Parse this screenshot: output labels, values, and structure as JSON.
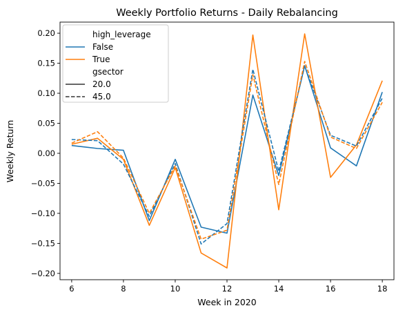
{
  "chart_data": {
    "type": "line",
    "title": "Weekly Portfolio Returns - Daily Rebalancing",
    "xlabel": "Week in 2020",
    "ylabel": "Weekly Return",
    "xlim": [
      5.55,
      18.45
    ],
    "ylim": [
      -0.2105,
      0.2185
    ],
    "x_ticks": [
      6,
      8,
      10,
      12,
      14,
      16,
      18
    ],
    "x_tick_labels": [
      "6",
      "8",
      "10",
      "12",
      "14",
      "16",
      "18"
    ],
    "y_ticks": [
      -0.2,
      -0.15,
      -0.1,
      -0.05,
      0.0,
      0.05,
      0.1,
      0.15,
      0.2
    ],
    "y_tick_labels": [
      "−0.20",
      "−0.15",
      "−0.10",
      "−0.05",
      "0.00",
      "0.05",
      "0.10",
      "0.15",
      "0.20"
    ],
    "grid": false,
    "legend_position": "top-left",
    "legend": {
      "title_hue": "high_leverage",
      "title_style": "gsector",
      "hue_entries": [
        {
          "label": "False",
          "color": "#1f77b4"
        },
        {
          "label": "True",
          "color": "#ff7f0e"
        }
      ],
      "style_entries": [
        {
          "label": "20.0",
          "dash": "solid"
        },
        {
          "label": "45.0",
          "dash": "dashed"
        }
      ]
    },
    "x": [
      6,
      7,
      8,
      9,
      10,
      11,
      12,
      13,
      14,
      15,
      16,
      17,
      18
    ],
    "series": [
      {
        "name": "False / 20.0",
        "color": "#1f77b4",
        "dash": "solid",
        "values": [
          0.013,
          0.008,
          0.005,
          -0.112,
          -0.01,
          -0.123,
          -0.133,
          0.097,
          -0.037,
          0.146,
          0.009,
          -0.021,
          0.102
        ]
      },
      {
        "name": "True / 20.0",
        "color": "#ff7f0e",
        "dash": "solid",
        "values": [
          0.015,
          0.025,
          -0.01,
          -0.12,
          -0.024,
          -0.166,
          -0.191,
          0.197,
          -0.094,
          0.199,
          -0.04,
          0.014,
          0.121
        ]
      },
      {
        "name": "False / 45.0",
        "color": "#1f77b4",
        "dash": "dashed",
        "values": [
          0.023,
          0.021,
          -0.018,
          -0.105,
          -0.017,
          -0.151,
          -0.117,
          0.14,
          -0.03,
          0.145,
          0.03,
          0.012,
          0.092
        ]
      },
      {
        "name": "True / 45.0",
        "color": "#ff7f0e",
        "dash": "dashed",
        "values": [
          0.017,
          0.036,
          -0.008,
          -0.1,
          -0.021,
          -0.143,
          -0.128,
          0.131,
          -0.052,
          0.153,
          0.027,
          0.008,
          0.085
        ]
      }
    ]
  }
}
